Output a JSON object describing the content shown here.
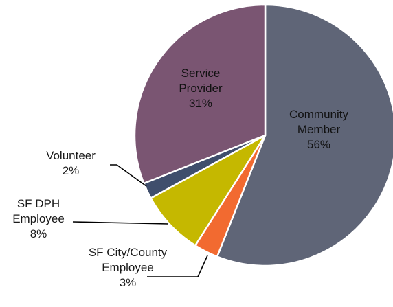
{
  "chart_data": {
    "type": "pie",
    "title": "",
    "slices": [
      {
        "name": "Community Member",
        "label": [
          "Community",
          "Member"
        ],
        "value": 56,
        "value_label": "56%",
        "color": "#5f6577",
        "label_style": "inside"
      },
      {
        "name": "SF City/County Employee",
        "label": [
          "SF City/County",
          "Employee"
        ],
        "value": 3,
        "value_label": "3%",
        "color": "#f26a30",
        "label_style": "leader"
      },
      {
        "name": "SF DPH Employee",
        "label": [
          "SF DPH",
          "Employee"
        ],
        "value": 8,
        "value_label": "8%",
        "color": "#c5b800",
        "label_style": "leader"
      },
      {
        "name": "Volunteer",
        "label": [
          "Volunteer"
        ],
        "value": 2,
        "value_label": "2%",
        "color": "#3f4e6c",
        "label_style": "leader"
      },
      {
        "name": "Service Provider",
        "label": [
          "Service",
          "Provider"
        ],
        "value": 31,
        "value_label": "31%",
        "color": "#7a5572",
        "label_style": "inside"
      }
    ],
    "start": "12 o'clock",
    "direction": "clockwise",
    "legend": "none"
  }
}
